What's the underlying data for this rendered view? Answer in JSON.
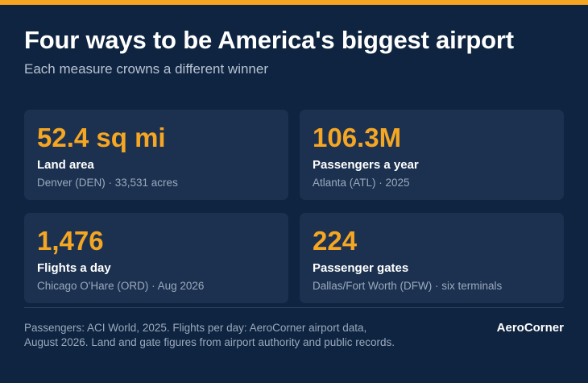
{
  "header": {
    "title": "Four ways to be America's biggest airport",
    "subtitle": "Each measure crowns a different winner"
  },
  "cards": [
    {
      "value": "52.4 sq mi",
      "label": "Land area",
      "detail": "Denver (DEN) · 33,531 acres"
    },
    {
      "value": "106.3M",
      "label": "Passengers a year",
      "detail": "Atlanta (ATL) · 2025"
    },
    {
      "value": "1,476",
      "label": "Flights a day",
      "detail": "Chicago O'Hare (ORD) · Aug 2026"
    },
    {
      "value": "224",
      "label": "Passenger gates",
      "detail": "Dallas/Fort Worth (DFW) · six terminals"
    }
  ],
  "footer": {
    "source": "Passengers: ACI World, 2025. Flights per day: AeroCorner airport data, August 2026. Land and gate figures from airport authority and public records.",
    "brand": "AeroCorner"
  }
}
